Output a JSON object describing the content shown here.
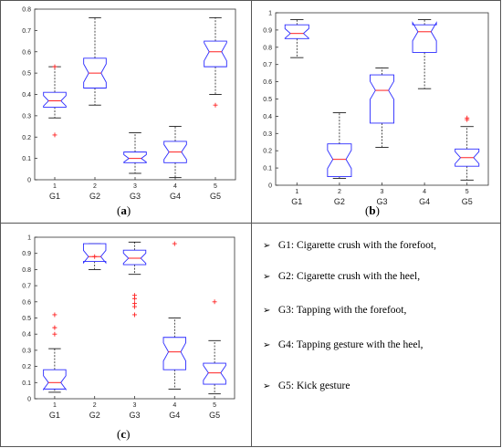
{
  "panel_labels": {
    "a": "a",
    "b": "b",
    "c": "c"
  },
  "legend": {
    "bullet": "➢",
    "items": [
      "G1: Cigarette crush with the forefoot,",
      "G2: Cigarette crush with the heel,",
      "G3: Tapping with the forefoot,",
      "G4: Tapping gesture with the heel,",
      "G5: Kick gesture"
    ]
  },
  "colors": {
    "box": "#2a2aff",
    "median": "#ff2020",
    "outlier": "#ff2020",
    "whisker": "#000000"
  },
  "chart_data": [
    {
      "type": "box",
      "panel": "a",
      "ylim": [
        0,
        0.8
      ],
      "yticks": [
        "0",
        "0.1",
        "0.2",
        "0.3",
        "0.4",
        "0.5",
        "0.6",
        "0.7",
        "0.8"
      ],
      "ytick_values": [
        0,
        0.1,
        0.2,
        0.3,
        0.4,
        0.5,
        0.6,
        0.7,
        0.8
      ],
      "x_tick_numbers": [
        "1",
        "2",
        "3",
        "4",
        "5"
      ],
      "categories": [
        "G1",
        "G2",
        "G3",
        "G4",
        "G5"
      ],
      "boxes": [
        {
          "whisker_low": 0.29,
          "q1": 0.34,
          "median": 0.37,
          "q3": 0.41,
          "whisker_high": 0.53,
          "outliers": [
            0.21,
            0.53
          ]
        },
        {
          "whisker_low": 0.35,
          "q1": 0.43,
          "median": 0.5,
          "q3": 0.57,
          "whisker_high": 0.76,
          "outliers": []
        },
        {
          "whisker_low": 0.03,
          "q1": 0.08,
          "median": 0.1,
          "q3": 0.13,
          "whisker_high": 0.22,
          "outliers": []
        },
        {
          "whisker_low": 0.01,
          "q1": 0.08,
          "median": 0.13,
          "q3": 0.18,
          "whisker_high": 0.25,
          "outliers": []
        },
        {
          "whisker_low": 0.4,
          "q1": 0.53,
          "median": 0.6,
          "q3": 0.65,
          "whisker_high": 0.76,
          "outliers": [
            0.35
          ]
        }
      ]
    },
    {
      "type": "box",
      "panel": "b",
      "ylim": [
        0,
        1
      ],
      "yticks": [
        "0",
        "0.1",
        "0.2",
        "0.3",
        "0.4",
        "0.5",
        "0.6",
        "0.7",
        "0.8",
        "0.9",
        "1"
      ],
      "ytick_values": [
        0,
        0.1,
        0.2,
        0.3,
        0.4,
        0.5,
        0.6,
        0.7,
        0.8,
        0.9,
        1
      ],
      "x_tick_numbers": [
        "1",
        "2",
        "3",
        "4",
        "5"
      ],
      "categories": [
        "G1",
        "G2",
        "G3",
        "G4",
        "G5"
      ],
      "boxes": [
        {
          "whisker_low": 0.74,
          "q1": 0.85,
          "median": 0.88,
          "q3": 0.93,
          "whisker_high": 0.96,
          "outliers": []
        },
        {
          "whisker_low": 0.04,
          "q1": 0.05,
          "median": 0.15,
          "q3": 0.24,
          "whisker_high": 0.42,
          "outliers": []
        },
        {
          "whisker_low": 0.22,
          "q1": 0.36,
          "median": 0.55,
          "q3": 0.64,
          "whisker_high": 0.68,
          "outliers": []
        },
        {
          "whisker_low": 0.56,
          "q1": 0.77,
          "median": 0.89,
          "q3": 0.93,
          "whisker_high": 0.96,
          "outliers": []
        },
        {
          "whisker_low": 0.03,
          "q1": 0.11,
          "median": 0.16,
          "q3": 0.21,
          "whisker_high": 0.34,
          "outliers": [
            0.38,
            0.39
          ]
        }
      ]
    },
    {
      "type": "box",
      "panel": "c",
      "ylim": [
        0,
        1
      ],
      "yticks": [
        "0",
        "0.1",
        "0.2",
        "0.3",
        "0.4",
        "0.5",
        "0.6",
        "0.7",
        "0.8",
        "0.9",
        "1"
      ],
      "ytick_values": [
        0,
        0.1,
        0.2,
        0.3,
        0.4,
        0.5,
        0.6,
        0.7,
        0.8,
        0.9,
        1
      ],
      "x_tick_numbers": [
        "1",
        "2",
        "3",
        "4",
        "5"
      ],
      "categories": [
        "G1",
        "G2",
        "G3",
        "G4",
        "G5"
      ],
      "boxes": [
        {
          "whisker_low": 0.04,
          "q1": 0.06,
          "median": 0.1,
          "q3": 0.18,
          "whisker_high": 0.31,
          "outliers": [
            0.4,
            0.44,
            0.52
          ]
        },
        {
          "whisker_low": 0.8,
          "q1": 0.85,
          "median": 0.88,
          "q3": 0.96,
          "whisker_high": 0.96,
          "outliers": [
            0.88
          ]
        },
        {
          "whisker_low": 0.77,
          "q1": 0.83,
          "median": 0.87,
          "q3": 0.92,
          "whisker_high": 0.97,
          "outliers": [
            0.52,
            0.57,
            0.59,
            0.62,
            0.64
          ]
        },
        {
          "whisker_low": 0.06,
          "q1": 0.18,
          "median": 0.29,
          "q3": 0.38,
          "whisker_high": 0.5,
          "outliers": [
            0.96
          ]
        },
        {
          "whisker_low": 0.03,
          "q1": 0.09,
          "median": 0.16,
          "q3": 0.22,
          "whisker_high": 0.36,
          "outliers": [
            0.6
          ]
        }
      ]
    }
  ]
}
